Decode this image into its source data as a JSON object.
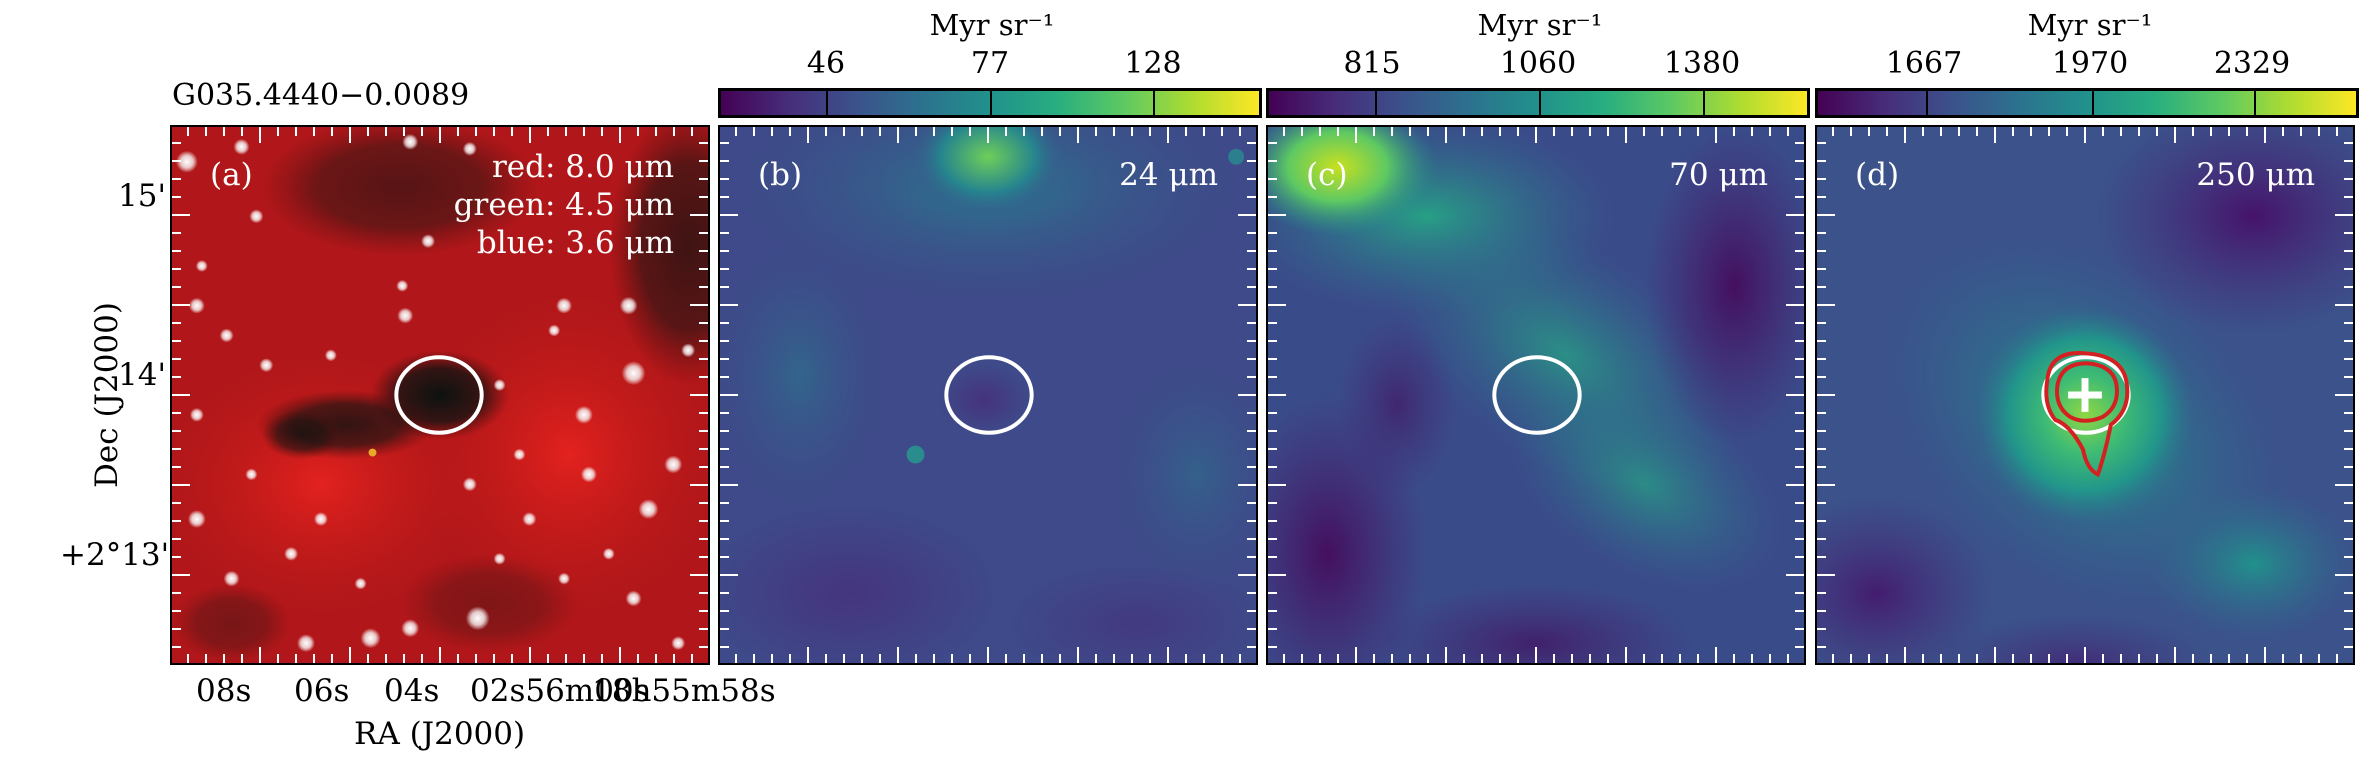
{
  "figure": {
    "source_name": "G035.4440−0.0089",
    "panels": [
      {
        "id": "a",
        "label": "(a)",
        "legend": [
          "red: 8.0 μm",
          "green: 4.5 μm",
          "blue: 3.6 μm"
        ]
      },
      {
        "id": "b",
        "label": "(b)",
        "band": "24 μm"
      },
      {
        "id": "c",
        "label": "(c)",
        "band": "70 μm"
      },
      {
        "id": "d",
        "label": "(d)",
        "band": "250 μm"
      }
    ],
    "colorbars": [
      {
        "unit": "Myr sr⁻¹",
        "ticks": [
          "46",
          "77",
          "128"
        ]
      },
      {
        "unit": "Myr sr⁻¹",
        "ticks": [
          "815",
          "1060",
          "1380"
        ]
      },
      {
        "unit": "Myr sr⁻¹",
        "ticks": [
          "1667",
          "1970",
          "2329"
        ]
      }
    ],
    "dec_axis": {
      "label": "Dec (J2000)",
      "ticks": [
        "15'",
        "14'",
        "+2°13'"
      ]
    },
    "ra_axis": {
      "label": "RA (J2000)",
      "ticks": [
        "08s",
        "06s",
        "04s",
        "02s56m00s",
        "18h55m58s"
      ]
    },
    "colors": {
      "ellipse": "#ffffff",
      "contour": "#d42020",
      "cross": "#ffffff",
      "colormap": "viridis"
    }
  }
}
